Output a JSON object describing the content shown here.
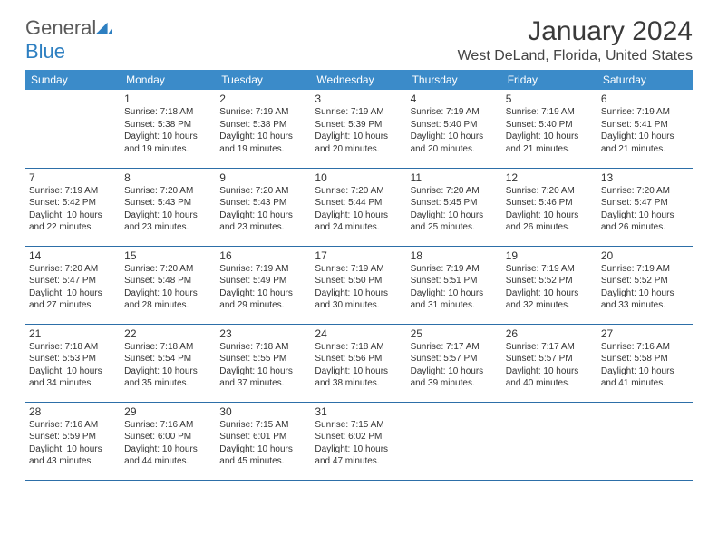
{
  "brand": {
    "name_part1": "General",
    "name_part2": "Blue",
    "text_color_gray": "#5a5a5a",
    "text_color_blue": "#2d7fc1",
    "icon_color": "#2d7fc1"
  },
  "title": "January 2024",
  "location": "West DeLand, Florida, United States",
  "colors": {
    "header_bg": "#3b8bc9",
    "header_text": "#ffffff",
    "row_divider": "#2d6fa8",
    "body_text": "#333333",
    "page_bg": "#ffffff"
  },
  "days_of_week": [
    "Sunday",
    "Monday",
    "Tuesday",
    "Wednesday",
    "Thursday",
    "Friday",
    "Saturday"
  ],
  "weeks": [
    [
      {
        "num": "",
        "sunrise": "",
        "sunset": "",
        "daylight": ""
      },
      {
        "num": "1",
        "sunrise": "Sunrise: 7:18 AM",
        "sunset": "Sunset: 5:38 PM",
        "daylight": "Daylight: 10 hours and 19 minutes."
      },
      {
        "num": "2",
        "sunrise": "Sunrise: 7:19 AM",
        "sunset": "Sunset: 5:38 PM",
        "daylight": "Daylight: 10 hours and 19 minutes."
      },
      {
        "num": "3",
        "sunrise": "Sunrise: 7:19 AM",
        "sunset": "Sunset: 5:39 PM",
        "daylight": "Daylight: 10 hours and 20 minutes."
      },
      {
        "num": "4",
        "sunrise": "Sunrise: 7:19 AM",
        "sunset": "Sunset: 5:40 PM",
        "daylight": "Daylight: 10 hours and 20 minutes."
      },
      {
        "num": "5",
        "sunrise": "Sunrise: 7:19 AM",
        "sunset": "Sunset: 5:40 PM",
        "daylight": "Daylight: 10 hours and 21 minutes."
      },
      {
        "num": "6",
        "sunrise": "Sunrise: 7:19 AM",
        "sunset": "Sunset: 5:41 PM",
        "daylight": "Daylight: 10 hours and 21 minutes."
      }
    ],
    [
      {
        "num": "7",
        "sunrise": "Sunrise: 7:19 AM",
        "sunset": "Sunset: 5:42 PM",
        "daylight": "Daylight: 10 hours and 22 minutes."
      },
      {
        "num": "8",
        "sunrise": "Sunrise: 7:20 AM",
        "sunset": "Sunset: 5:43 PM",
        "daylight": "Daylight: 10 hours and 23 minutes."
      },
      {
        "num": "9",
        "sunrise": "Sunrise: 7:20 AM",
        "sunset": "Sunset: 5:43 PM",
        "daylight": "Daylight: 10 hours and 23 minutes."
      },
      {
        "num": "10",
        "sunrise": "Sunrise: 7:20 AM",
        "sunset": "Sunset: 5:44 PM",
        "daylight": "Daylight: 10 hours and 24 minutes."
      },
      {
        "num": "11",
        "sunrise": "Sunrise: 7:20 AM",
        "sunset": "Sunset: 5:45 PM",
        "daylight": "Daylight: 10 hours and 25 minutes."
      },
      {
        "num": "12",
        "sunrise": "Sunrise: 7:20 AM",
        "sunset": "Sunset: 5:46 PM",
        "daylight": "Daylight: 10 hours and 26 minutes."
      },
      {
        "num": "13",
        "sunrise": "Sunrise: 7:20 AM",
        "sunset": "Sunset: 5:47 PM",
        "daylight": "Daylight: 10 hours and 26 minutes."
      }
    ],
    [
      {
        "num": "14",
        "sunrise": "Sunrise: 7:20 AM",
        "sunset": "Sunset: 5:47 PM",
        "daylight": "Daylight: 10 hours and 27 minutes."
      },
      {
        "num": "15",
        "sunrise": "Sunrise: 7:20 AM",
        "sunset": "Sunset: 5:48 PM",
        "daylight": "Daylight: 10 hours and 28 minutes."
      },
      {
        "num": "16",
        "sunrise": "Sunrise: 7:19 AM",
        "sunset": "Sunset: 5:49 PM",
        "daylight": "Daylight: 10 hours and 29 minutes."
      },
      {
        "num": "17",
        "sunrise": "Sunrise: 7:19 AM",
        "sunset": "Sunset: 5:50 PM",
        "daylight": "Daylight: 10 hours and 30 minutes."
      },
      {
        "num": "18",
        "sunrise": "Sunrise: 7:19 AM",
        "sunset": "Sunset: 5:51 PM",
        "daylight": "Daylight: 10 hours and 31 minutes."
      },
      {
        "num": "19",
        "sunrise": "Sunrise: 7:19 AM",
        "sunset": "Sunset: 5:52 PM",
        "daylight": "Daylight: 10 hours and 32 minutes."
      },
      {
        "num": "20",
        "sunrise": "Sunrise: 7:19 AM",
        "sunset": "Sunset: 5:52 PM",
        "daylight": "Daylight: 10 hours and 33 minutes."
      }
    ],
    [
      {
        "num": "21",
        "sunrise": "Sunrise: 7:18 AM",
        "sunset": "Sunset: 5:53 PM",
        "daylight": "Daylight: 10 hours and 34 minutes."
      },
      {
        "num": "22",
        "sunrise": "Sunrise: 7:18 AM",
        "sunset": "Sunset: 5:54 PM",
        "daylight": "Daylight: 10 hours and 35 minutes."
      },
      {
        "num": "23",
        "sunrise": "Sunrise: 7:18 AM",
        "sunset": "Sunset: 5:55 PM",
        "daylight": "Daylight: 10 hours and 37 minutes."
      },
      {
        "num": "24",
        "sunrise": "Sunrise: 7:18 AM",
        "sunset": "Sunset: 5:56 PM",
        "daylight": "Daylight: 10 hours and 38 minutes."
      },
      {
        "num": "25",
        "sunrise": "Sunrise: 7:17 AM",
        "sunset": "Sunset: 5:57 PM",
        "daylight": "Daylight: 10 hours and 39 minutes."
      },
      {
        "num": "26",
        "sunrise": "Sunrise: 7:17 AM",
        "sunset": "Sunset: 5:57 PM",
        "daylight": "Daylight: 10 hours and 40 minutes."
      },
      {
        "num": "27",
        "sunrise": "Sunrise: 7:16 AM",
        "sunset": "Sunset: 5:58 PM",
        "daylight": "Daylight: 10 hours and 41 minutes."
      }
    ],
    [
      {
        "num": "28",
        "sunrise": "Sunrise: 7:16 AM",
        "sunset": "Sunset: 5:59 PM",
        "daylight": "Daylight: 10 hours and 43 minutes."
      },
      {
        "num": "29",
        "sunrise": "Sunrise: 7:16 AM",
        "sunset": "Sunset: 6:00 PM",
        "daylight": "Daylight: 10 hours and 44 minutes."
      },
      {
        "num": "30",
        "sunrise": "Sunrise: 7:15 AM",
        "sunset": "Sunset: 6:01 PM",
        "daylight": "Daylight: 10 hours and 45 minutes."
      },
      {
        "num": "31",
        "sunrise": "Sunrise: 7:15 AM",
        "sunset": "Sunset: 6:02 PM",
        "daylight": "Daylight: 10 hours and 47 minutes."
      },
      {
        "num": "",
        "sunrise": "",
        "sunset": "",
        "daylight": ""
      },
      {
        "num": "",
        "sunrise": "",
        "sunset": "",
        "daylight": ""
      },
      {
        "num": "",
        "sunrise": "",
        "sunset": "",
        "daylight": ""
      }
    ]
  ]
}
